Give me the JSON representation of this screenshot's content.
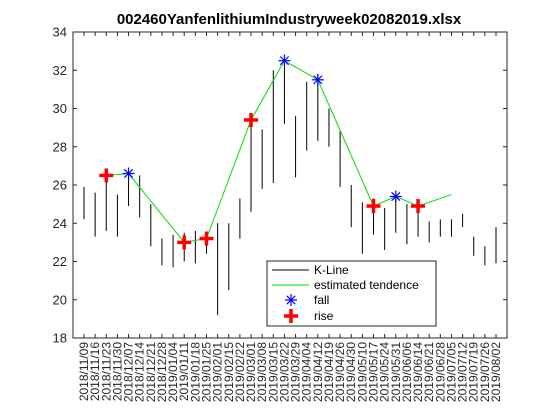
{
  "chart_data": {
    "type": "line",
    "title": "002460YanfenlithiumIndustryweek02082019.xlsx",
    "xlabel": "",
    "ylabel": "",
    "ylim": [
      18,
      34
    ],
    "yticks": [
      18,
      20,
      22,
      24,
      26,
      28,
      30,
      32,
      34
    ],
    "categories": [
      "2018/11/09",
      "2018/11/16",
      "2018/11/23",
      "2018/11/30",
      "2018/12/07",
      "2018/12/14",
      "2018/12/21",
      "2018/12/28",
      "2019/01/04",
      "2019/01/11",
      "2019/01/18",
      "2019/01/25",
      "2019/02/01",
      "2019/02/15",
      "2019/02/22",
      "2019/03/01",
      "2019/03/08",
      "2019/03/15",
      "2019/03/22",
      "2019/03/29",
      "2019/04/04",
      "2019/04/12",
      "2019/04/19",
      "2019/04/26",
      "2019/04/30",
      "2019/05/10",
      "2019/05/17",
      "2019/05/24",
      "2019/05/31",
      "2019/06/06",
      "2019/06/14",
      "2019/06/21",
      "2019/06/28",
      "2019/07/05",
      "2019/07/12",
      "2019/07/19",
      "2019/07/26",
      "2019/08/02"
    ],
    "xticks_shown": [
      "2018/11/09",
      "2018/11/16",
      "2018/11/23",
      "2018/11/30",
      "2018/12/07",
      "2018/12/14",
      "2018/12/21",
      "2018/12/28",
      "2019/01/04",
      "2019/01/11",
      "2019/01/18",
      "2019/01/25",
      "2019/02/01",
      "2019/02/15",
      "2019/02/22",
      "2019/03/01",
      "2019/03/08",
      "2019/03/15",
      "2019/03/22",
      "2019/03/29",
      "2019/04/04",
      "2019/04/12",
      "2019/04/19",
      "2019/04/26",
      "2019/04/30",
      "2019/05/10",
      "2019/05/17",
      "2019/05/24",
      "2019/05/31",
      "2019/06/06",
      "2019/06/14",
      "2019/06/21",
      "2019/06/28",
      "2019/07/05",
      "2019/07/12",
      "2019/07/19",
      "2019/07/26",
      "2019/08/02"
    ],
    "kline": {
      "name": "K-Line",
      "color": "#000000",
      "low": [
        24.2,
        23.3,
        23.6,
        23.3,
        24.9,
        24.3,
        22.8,
        21.8,
        21.7,
        22.0,
        21.9,
        22.4,
        19.2,
        20.5,
        23.2,
        24.6,
        25.8,
        26.1,
        29.2,
        26.4,
        27.8,
        28.3,
        28.0,
        25.9,
        23.8,
        22.4,
        23.4,
        22.6,
        23.5,
        22.9,
        23.3,
        23.0,
        23.3,
        23.3,
        23.8,
        22.3,
        21.8,
        21.9
      ],
      "high": [
        25.9,
        25.6,
        26.6,
        25.5,
        26.7,
        26.5,
        25.0,
        23.2,
        23.4,
        23.5,
        23.6,
        23.3,
        24.0,
        24.0,
        25.3,
        29.6,
        28.9,
        32.0,
        32.3,
        29.6,
        31.4,
        31.8,
        30.0,
        28.8,
        26.0,
        25.1,
        25.3,
        24.8,
        25.5,
        25.0,
        25.0,
        24.1,
        24.2,
        24.2,
        24.5,
        23.3,
        22.8,
        23.8
      ]
    },
    "series": [
      {
        "name": "estimated tendence",
        "color": "#00e000",
        "x": [
          "2018/11/23",
          "2018/12/07",
          "2019/01/11",
          "2019/01/25",
          "2019/03/01",
          "2019/03/22",
          "2019/04/12",
          "2019/05/17",
          "2019/05/31",
          "2019/06/14",
          "2019/07/05"
        ],
        "y": [
          26.5,
          26.6,
          23.0,
          23.2,
          29.4,
          32.5,
          31.5,
          24.9,
          25.4,
          24.9,
          25.5
        ]
      },
      {
        "name": "fall",
        "color": "#0000ff",
        "marker": "asterisk",
        "x": [
          "2018/12/07",
          "2019/03/22",
          "2019/04/12",
          "2019/05/31"
        ],
        "y": [
          26.6,
          32.5,
          31.5,
          25.4
        ]
      },
      {
        "name": "rise",
        "color": "#ff0000",
        "marker": "plus",
        "x": [
          "2018/11/23",
          "2019/01/11",
          "2019/01/25",
          "2019/03/01",
          "2019/05/17",
          "2019/06/14"
        ],
        "y": [
          26.5,
          23.0,
          23.2,
          29.4,
          24.9,
          24.9
        ]
      }
    ],
    "legend": {
      "placement": "bottom-center",
      "entries": [
        "K-Line",
        "estimated tendence",
        "fall",
        "rise"
      ]
    },
    "grid": false
  }
}
